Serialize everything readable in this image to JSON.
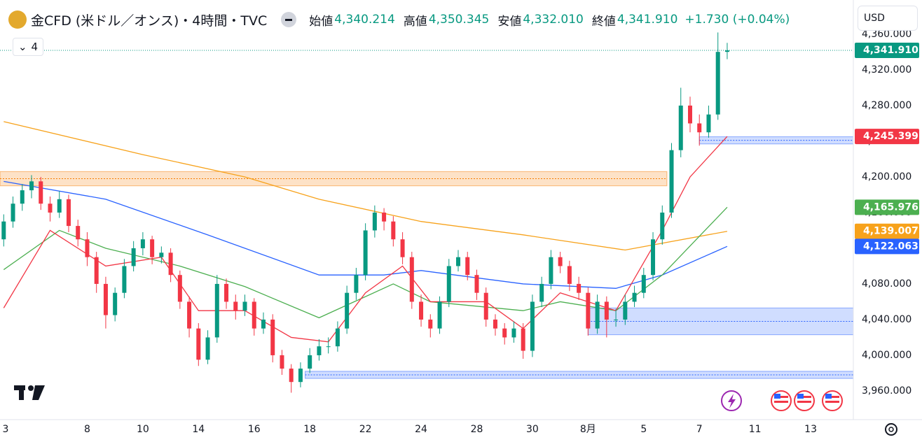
{
  "header": {
    "title": "金CFD (米ドル／オンス)・4時間・TVC",
    "open_label": "始値",
    "open": "4,340.214",
    "high_label": "高値",
    "high": "4,350.345",
    "low_label": "安値",
    "low": "4,332.010",
    "close_label": "終値",
    "close": "4,341.910",
    "change": "+1.730 (+0.04%)",
    "interval_count": "4",
    "currency": "USD"
  },
  "chart_data": {
    "type": "candlestick",
    "up_color": "#089981",
    "down_color": "#f23645",
    "xlim": [
      -0.4,
      91.6
    ],
    "ylim": [
      3927.8,
      4398.4
    ],
    "yticks": [
      {
        "value": 3960,
        "label": "3,960.000"
      },
      {
        "value": 4000,
        "label": "4,000.000"
      },
      {
        "value": 4040,
        "label": "4,040.000"
      },
      {
        "value": 4080,
        "label": "4,080.000"
      },
      {
        "value": 4120,
        "label": "4,120.000"
      },
      {
        "value": 4160,
        "label": "4,160.000"
      },
      {
        "value": 4200,
        "label": "4,200.000"
      },
      {
        "value": 4240,
        "label": "4,240.000"
      },
      {
        "value": 4280,
        "label": "4,280.000"
      },
      {
        "value": 4320,
        "label": "4,320.000"
      },
      {
        "value": 4360,
        "label": "4,360.000"
      }
    ],
    "xticks": [
      {
        "value": 0.2,
        "label": "3"
      },
      {
        "value": 9,
        "label": "8"
      },
      {
        "value": 15,
        "label": "10"
      },
      {
        "value": 21,
        "label": "14"
      },
      {
        "value": 27,
        "label": "16"
      },
      {
        "value": 33,
        "label": "18"
      },
      {
        "value": 39,
        "label": "22"
      },
      {
        "value": 45,
        "label": "24"
      },
      {
        "value": 51,
        "label": "28"
      },
      {
        "value": 57,
        "label": "30"
      },
      {
        "value": 63,
        "label": "8月"
      },
      {
        "value": 69,
        "label": "5"
      },
      {
        "value": 75,
        "label": "7"
      },
      {
        "value": 81,
        "label": "11"
      },
      {
        "value": 87,
        "label": "13"
      }
    ],
    "grid": false,
    "last_label": "4,341.910",
    "candles": [
      [
        4130,
        4158,
        4122,
        4150
      ],
      [
        4150,
        4178,
        4143,
        4170
      ],
      [
        4170,
        4192,
        4162,
        4185
      ],
      [
        4185,
        4202,
        4176,
        4195
      ],
      [
        4195,
        4200,
        4163,
        4170
      ],
      [
        4170,
        4178,
        4150,
        4160
      ],
      [
        4160,
        4184,
        4154,
        4175
      ],
      [
        4175,
        4180,
        4138,
        4145
      ],
      [
        4145,
        4152,
        4122,
        4130
      ],
      [
        4130,
        4138,
        4100,
        4110
      ],
      [
        4110,
        4116,
        4070,
        4080
      ],
      [
        4080,
        4088,
        4030,
        4045
      ],
      [
        4045,
        4076,
        4038,
        4070
      ],
      [
        4070,
        4108,
        4064,
        4100
      ],
      [
        4100,
        4128,
        4094,
        4120
      ],
      [
        4120,
        4138,
        4112,
        4130
      ],
      [
        4130,
        4134,
        4102,
        4110
      ],
      [
        4110,
        4122,
        4103,
        4115
      ],
      [
        4115,
        4120,
        4082,
        4090
      ],
      [
        4090,
        4095,
        4052,
        4060
      ],
      [
        4060,
        4066,
        4020,
        4030
      ],
      [
        4030,
        4036,
        3988,
        3995
      ],
      [
        3995,
        4028,
        3990,
        4020
      ],
      [
        4020,
        4090,
        4014,
        4080
      ],
      [
        4080,
        4086,
        4052,
        4060
      ],
      [
        4060,
        4068,
        4040,
        4050
      ],
      [
        4050,
        4068,
        4044,
        4060
      ],
      [
        4060,
        4064,
        4022,
        4030
      ],
      [
        4030,
        4048,
        4024,
        4040
      ],
      [
        4040,
        4046,
        3992,
        4000
      ],
      [
        4000,
        4006,
        3978,
        3985
      ],
      [
        3985,
        3990,
        3958,
        3970
      ],
      [
        3970,
        3992,
        3964,
        3985
      ],
      [
        3985,
        4008,
        3980,
        4000
      ],
      [
        4000,
        4018,
        3994,
        4010
      ],
      [
        4010,
        4020,
        4002,
        4010
      ],
      [
        4010,
        4038,
        4004,
        4030
      ],
      [
        4030,
        4078,
        4024,
        4070
      ],
      [
        4070,
        4098,
        4062,
        4090
      ],
      [
        4090,
        4148,
        4084,
        4140
      ],
      [
        4140,
        4168,
        4132,
        4160
      ],
      [
        4160,
        4165,
        4140,
        4150
      ],
      [
        4150,
        4156,
        4122,
        4130
      ],
      [
        4130,
        4138,
        4102,
        4110
      ],
      [
        4110,
        4116,
        4052,
        4060
      ],
      [
        4060,
        4068,
        4032,
        4040
      ],
      [
        4040,
        4046,
        4020,
        4030
      ],
      [
        4030,
        4066,
        4024,
        4060
      ],
      [
        4060,
        4108,
        4054,
        4100
      ],
      [
        4100,
        4118,
        4094,
        4110
      ],
      [
        4110,
        4116,
        4084,
        4090
      ],
      [
        4090,
        4096,
        4062,
        4070
      ],
      [
        4070,
        4076,
        4032,
        4040
      ],
      [
        4040,
        4046,
        4022,
        4030
      ],
      [
        4030,
        4036,
        4012,
        4020
      ],
      [
        4020,
        4038,
        4014,
        4030
      ],
      [
        4030,
        4036,
        3996,
        4005
      ],
      [
        4005,
        4068,
        3998,
        4060
      ],
      [
        4060,
        4088,
        4054,
        4080
      ],
      [
        4080,
        4118,
        4074,
        4110
      ],
      [
        4110,
        4116,
        4092,
        4100
      ],
      [
        4100,
        4106,
        4072,
        4080
      ],
      [
        4080,
        4088,
        4062,
        4070
      ],
      [
        4070,
        4076,
        4022,
        4030
      ],
      [
        4030,
        4068,
        4024,
        4060
      ],
      [
        4060,
        4066,
        4020,
        4040
      ],
      [
        4040,
        4052,
        4032,
        4040
      ],
      [
        4040,
        4068,
        4034,
        4060
      ],
      [
        4060,
        4078,
        4054,
        4070
      ],
      [
        4070,
        4098,
        4064,
        4090
      ],
      [
        4090,
        4138,
        4084,
        4130
      ],
      [
        4130,
        4168,
        4124,
        4160
      ],
      [
        4160,
        4238,
        4154,
        4230
      ],
      [
        4230,
        4300,
        4222,
        4280
      ],
      [
        4280,
        4290,
        4250,
        4260
      ],
      [
        4260,
        4270,
        4235,
        4250
      ],
      [
        4250,
        4280,
        4244,
        4270
      ],
      [
        4270,
        4362,
        4264,
        4340.214
      ],
      [
        4340.214,
        4350.345,
        4332.01,
        4341.91
      ]
    ],
    "series": [
      {
        "color": "#f7a21b",
        "last_label": "4,139.007",
        "x": [
          0,
          15,
          26,
          34,
          45,
          56,
          67,
          78
        ],
        "values": [
          4262,
          4225,
          4200,
          4175,
          4150,
          4135,
          4118,
          4139.007
        ]
      },
      {
        "color": "#2962ff",
        "last_label": "4,122.063",
        "x": [
          0,
          11,
          22,
          34,
          41,
          45,
          56,
          66,
          71,
          78
        ],
        "values": [
          4195,
          4175,
          4135,
          4090,
          4090,
          4095,
          4080,
          4075,
          4090,
          4122.063
        ]
      },
      {
        "color": "#4caf50",
        "last_label": "4,165.976",
        "x": [
          0,
          6,
          11,
          19,
          26,
          34,
          42,
          46,
          56,
          60,
          66,
          71,
          78
        ],
        "values": [
          4096,
          4140,
          4120,
          4100,
          4077,
          4042,
          4080,
          4060,
          4050,
          4060,
          4050,
          4090,
          4165.976
        ]
      },
      {
        "color": "#f23645",
        "last_label": "4,245.399",
        "x": [
          0,
          5,
          11,
          17,
          21,
          26,
          31,
          35,
          39,
          43,
          46,
          52,
          56,
          60,
          66,
          71,
          74,
          78
        ],
        "values": [
          4053,
          4140,
          4100,
          4110,
          4050,
          4050,
          4020,
          4015,
          4070,
          4100,
          4060,
          4060,
          4030,
          4070,
          4050,
          4140,
          4200,
          4245.399
        ]
      }
    ],
    "zones": [
      {
        "low": 4190,
        "high": 4206,
        "from": -0.4,
        "to": 71.5,
        "color": "#f57c00"
      },
      {
        "low": 4237,
        "high": 4245,
        "from": 75,
        "color": "#2962ff"
      },
      {
        "low": 4023,
        "high": 4053,
        "from": 63,
        "color": "#2962ff"
      },
      {
        "low": 3974,
        "high": 3982,
        "from": 32.5,
        "color": "#2962ff"
      }
    ]
  }
}
